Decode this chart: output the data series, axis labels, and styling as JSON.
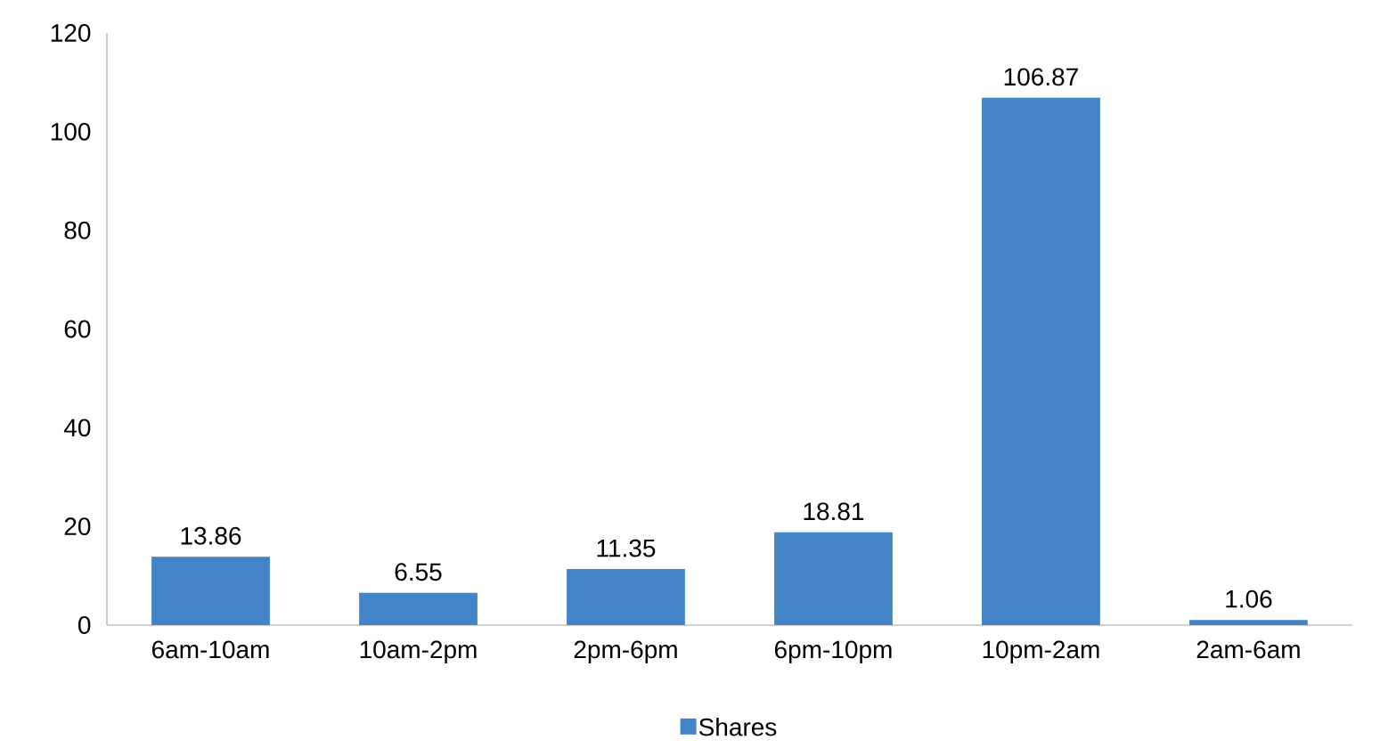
{
  "chart_data": {
    "type": "bar",
    "categories": [
      "6am-10am",
      "10am-2pm",
      "2pm-6pm",
      "6pm-10pm",
      "10pm-2am",
      "2am-6am"
    ],
    "series": [
      {
        "name": "Shares",
        "color": "#4383c8",
        "values": [
          13.86,
          6.55,
          11.35,
          18.81,
          106.87,
          1.06
        ]
      }
    ],
    "ylim": [
      0,
      120
    ],
    "yticks": [
      0,
      20,
      40,
      60,
      80,
      100,
      120
    ],
    "data_labels": true,
    "legend": "bottom"
  }
}
